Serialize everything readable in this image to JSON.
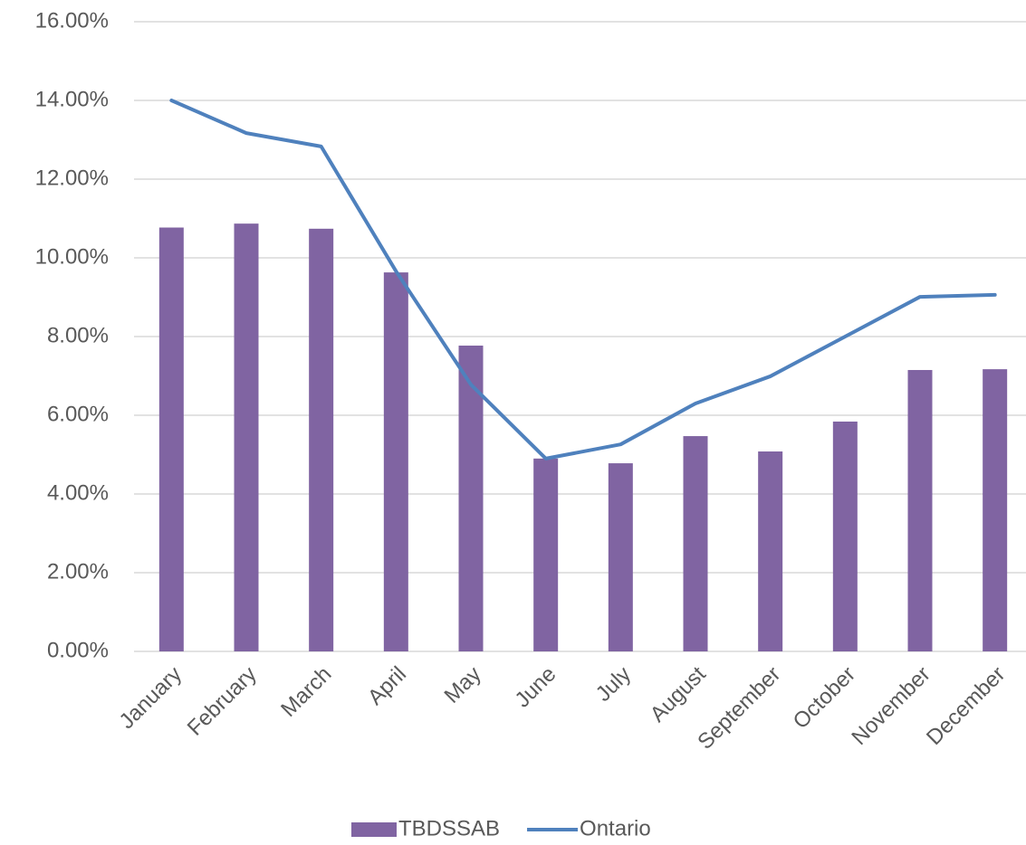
{
  "chart_data": {
    "type": "bar_line",
    "categories": [
      "January",
      "February",
      "March",
      "April",
      "May",
      "June",
      "July",
      "August",
      "September",
      "October",
      "November",
      "December"
    ],
    "series": [
      {
        "name": "TBDSSAB",
        "type": "bar",
        "color": "#8064a2",
        "values": [
          10.77,
          10.87,
          10.74,
          9.63,
          7.77,
          4.9,
          4.78,
          5.47,
          5.08,
          5.84,
          7.15,
          7.17
        ]
      },
      {
        "name": "Ontario",
        "type": "line",
        "color": "#4f81bd",
        "values": [
          14.0,
          13.17,
          12.83,
          9.66,
          6.78,
          4.9,
          5.26,
          6.3,
          6.99,
          8.0,
          9.01,
          9.06
        ]
      }
    ],
    "ylim": [
      0,
      16
    ],
    "yticks": [
      {
        "value": 0,
        "label": "0.00%"
      },
      {
        "value": 2,
        "label": "2.00%"
      },
      {
        "value": 4,
        "label": "4.00%"
      },
      {
        "value": 6,
        "label": "6.00%"
      },
      {
        "value": 8,
        "label": "8.00%"
      },
      {
        "value": 10,
        "label": "10.00%"
      },
      {
        "value": 12,
        "label": "12.00%"
      },
      {
        "value": 14,
        "label": "14.00%"
      },
      {
        "value": 16,
        "label": "16.00%"
      }
    ],
    "grid": true,
    "legend": "bottom"
  }
}
